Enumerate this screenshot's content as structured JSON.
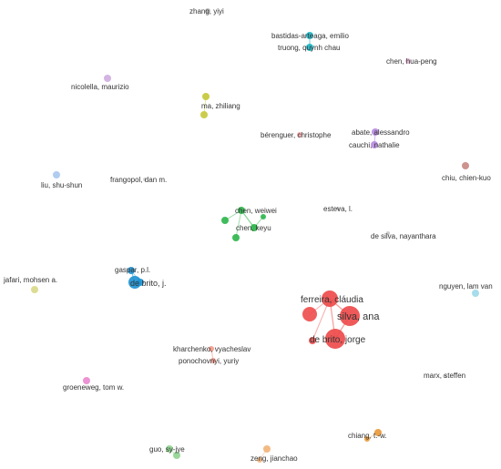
{
  "network": {
    "nodes": [
      {
        "id": "zhang",
        "label": "zhang, yiyi",
        "color": "#bdbdbd"
      },
      {
        "id": "bastidas",
        "label": "bastidas-arteaga, emilio",
        "color": "#20b8c8"
      },
      {
        "id": "truong",
        "label": "truong, quynh chau",
        "color": "#20b8c8"
      },
      {
        "id": "chenhua",
        "label": "chen, hua-peng",
        "color": "#e7b6d6"
      },
      {
        "id": "nicolella",
        "label": "nicolella, maurizio",
        "color": "#cfaee0"
      },
      {
        "id": "ma",
        "label": "ma, zhiliang",
        "color": "#c6c83a"
      },
      {
        "id": "abate",
        "label": "abate, alessandro",
        "color": "#b78be0"
      },
      {
        "id": "cauchi",
        "label": "cauchi, nathalie",
        "color": "#b78be0"
      },
      {
        "id": "berenguer",
        "label": "bérenguer, christophe",
        "color": "#f3a7a7"
      },
      {
        "id": "chiu",
        "label": "chiu, chien-kuo",
        "color": "#c98a84"
      },
      {
        "id": "liu",
        "label": "liu, shu-shun",
        "color": "#a9c8ef"
      },
      {
        "id": "frangopol",
        "label": "frangopol, dan m.",
        "color": "#d0d0d0"
      },
      {
        "id": "chenweiwei",
        "label": "chen, weiwei",
        "color": "#2bb54a"
      },
      {
        "id": "chenkeyu",
        "label": "chen, keyu",
        "color": "#2bb54a"
      },
      {
        "id": "esteva",
        "label": "esteva, l.",
        "color": "#c9c9c9"
      },
      {
        "id": "desilvan",
        "label": "de silva, nayanthara",
        "color": "#c9c9c9"
      },
      {
        "id": "jafari",
        "label": "jafari, mohsen a.",
        "color": "#d9d98a"
      },
      {
        "id": "gaspar",
        "label": "gaspar, p.l.",
        "color": "#1f94d4"
      },
      {
        "id": "debritoj",
        "label": "de brito, j.",
        "color": "#1f94d4"
      },
      {
        "id": "ferreira",
        "label": "ferreira, cláudia",
        "color": "#ee4b4b"
      },
      {
        "id": "silva",
        "label": "silva, ana",
        "color": "#ee4b4b"
      },
      {
        "id": "debritojorge",
        "label": "de brito, jorge",
        "color": "#ee4b4b"
      },
      {
        "id": "nguyen",
        "label": "nguyen, lam van",
        "color": "#9fd9ea"
      },
      {
        "id": "kharchenko",
        "label": "kharchenko, vyacheslav",
        "color": "#f39a8a"
      },
      {
        "id": "ponochovnyi",
        "label": "ponochovnyi, yuriy",
        "color": "#f39a8a"
      },
      {
        "id": "marx",
        "label": "marx, steffen",
        "color": "#cccccc"
      },
      {
        "id": "groeneweg",
        "label": "groeneweg, tom w.",
        "color": "#e98ad0"
      },
      {
        "id": "chiang",
        "label": "chiang, t.-w.",
        "color": "#e89a3c"
      },
      {
        "id": "guo",
        "label": "guo, sy-jye",
        "color": "#8fd48f"
      },
      {
        "id": "zeng",
        "label": "zeng, jianchao",
        "color": "#f2b47a"
      }
    ],
    "links": [
      [
        "bastidas",
        "truong"
      ],
      [
        "abate",
        "cauchi"
      ],
      [
        "chenweiwei",
        "chenkeyu"
      ],
      [
        "gaspar",
        "debritoj"
      ],
      [
        "ferreira",
        "silva"
      ],
      [
        "ferreira",
        "debritojorge"
      ],
      [
        "silva",
        "debritojorge"
      ],
      [
        "kharchenko",
        "ponochovnyi"
      ]
    ]
  }
}
